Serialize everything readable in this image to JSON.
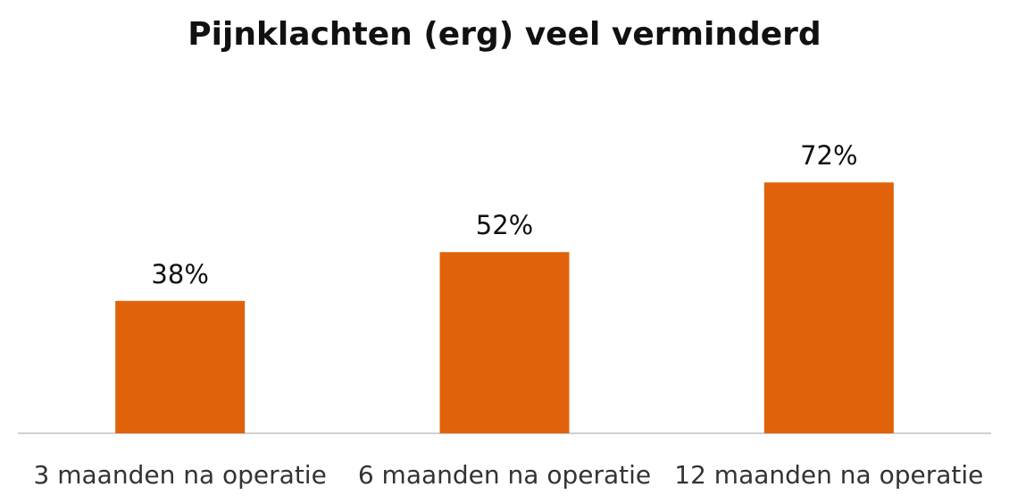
{
  "chart_data": {
    "type": "bar",
    "title": "Pijnklachten (erg) veel verminderd",
    "categories": [
      "3 maanden na operatie",
      "6 maanden na operatie",
      "12 maanden na operatie"
    ],
    "values": [
      38,
      52,
      72
    ],
    "value_labels": [
      "38%",
      "52%",
      "72%"
    ],
    "xlabel": "",
    "ylabel": "",
    "ylim": [
      0,
      100
    ],
    "grid": false,
    "legend": "none",
    "bar_color": "#E0620A",
    "axis_color": "#D0D0D0",
    "text_color": "#111111"
  }
}
